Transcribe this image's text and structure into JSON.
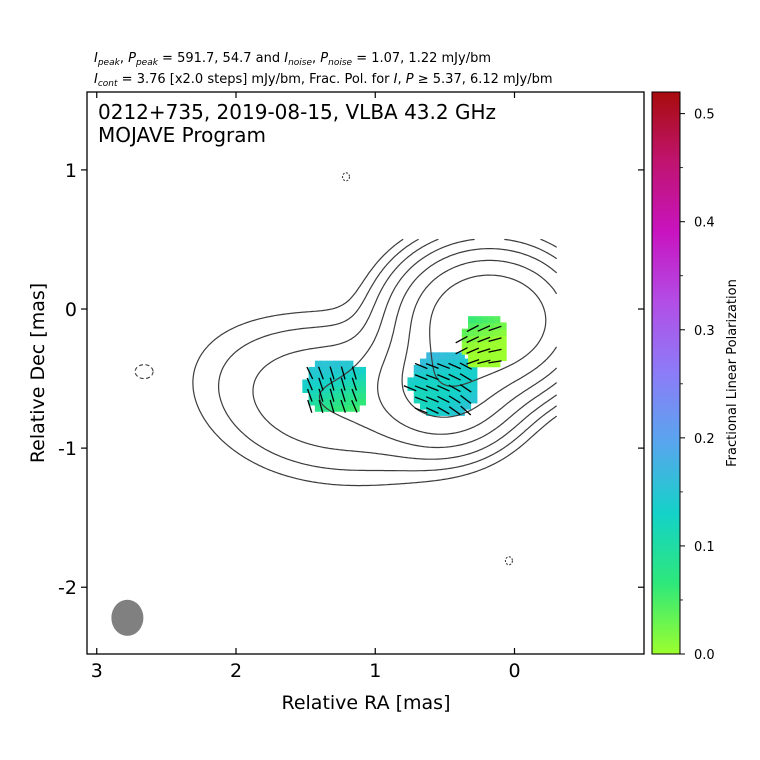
{
  "header": {
    "line1": {
      "a1": "I",
      "a1sub": "peak",
      "a2": ", ",
      "a3": "P",
      "a3sub": "peak",
      "a4": " = 591.7, 54.7 and ",
      "a5": "I",
      "a5sub": "noise",
      "a6": ", ",
      "a7": "P",
      "a7sub": "noise",
      "a8": " = 1.07, 1.22 mJy/bm"
    },
    "line2": {
      "b1": "I",
      "b1sub": "cont",
      "b2": " = 3.76 [x2.0 steps] mJy/bm, Frac. Pol. for ",
      "b3": "I",
      "b4": ", ",
      "b5": "P",
      "b6": " ≥  5.37, 6.12 mJy/bm"
    }
  },
  "chart_data": {
    "type": "contour",
    "title": "0212+735, 2019-08-15, VLBA 43.2 GHz",
    "subtitle": "MOJAVE Program",
    "xlabel": "Relative RA [mas]",
    "ylabel": "Relative Dec [mas]",
    "xlim": [
      3.07,
      -0.93
    ],
    "ylim": [
      -2.48,
      1.56
    ],
    "x_ticks": [
      3,
      2,
      1,
      0
    ],
    "y_ticks": [
      1,
      0,
      -1,
      -2
    ],
    "x_tick_labels": [
      "3",
      "2",
      "1",
      "0"
    ],
    "y_tick_labels": [
      "1",
      "0",
      "-1",
      "-2"
    ],
    "colorbar": {
      "label": "Fractional Linear Polarization",
      "range": [
        0.0,
        0.52
      ],
      "ticks": [
        0.0,
        0.1,
        0.2,
        0.3,
        0.4,
        0.5
      ],
      "tick_labels": [
        "0.0",
        "0.1",
        "0.2",
        "0.3",
        "0.4",
        "0.5"
      ],
      "colors": [
        "#9cff2e",
        "#2ee87a",
        "#14d2c8",
        "#58a6ee",
        "#8c7cf8",
        "#b24ee6",
        "#c814c0",
        "#c01470",
        "#a80c0c"
      ]
    },
    "contours": {
      "base_level_mJy": 3.76,
      "step_factor": 2.0,
      "peak_position": [
        0.3,
        -0.2
      ],
      "n_levels": 7
    },
    "polarization_regions": [
      {
        "center": [
          1.3,
          -0.58
        ],
        "radius_x": 0.23,
        "radius_y": 0.2,
        "fraction": 0.1,
        "evpa_deg": 30
      },
      {
        "center": [
          0.52,
          -0.57
        ],
        "radius_x": 0.25,
        "radius_y": 0.24,
        "fraction": 0.16,
        "evpa_deg": 55
      },
      {
        "center": [
          0.23,
          -0.26
        ],
        "radius_x": 0.17,
        "radius_y": 0.2,
        "fraction": 0.03,
        "evpa_deg": 105
      }
    ],
    "beam": {
      "center": [
        2.78,
        -2.22
      ],
      "major_mas": 0.26,
      "minor_mas": 0.23,
      "pa_deg": 0,
      "color": "#808080"
    },
    "negative_contours": [
      {
        "center": [
          2.66,
          -0.45
        ]
      },
      {
        "center": [
          1.21,
          0.95
        ]
      },
      {
        "center": [
          0.04,
          -1.81
        ]
      }
    ]
  }
}
